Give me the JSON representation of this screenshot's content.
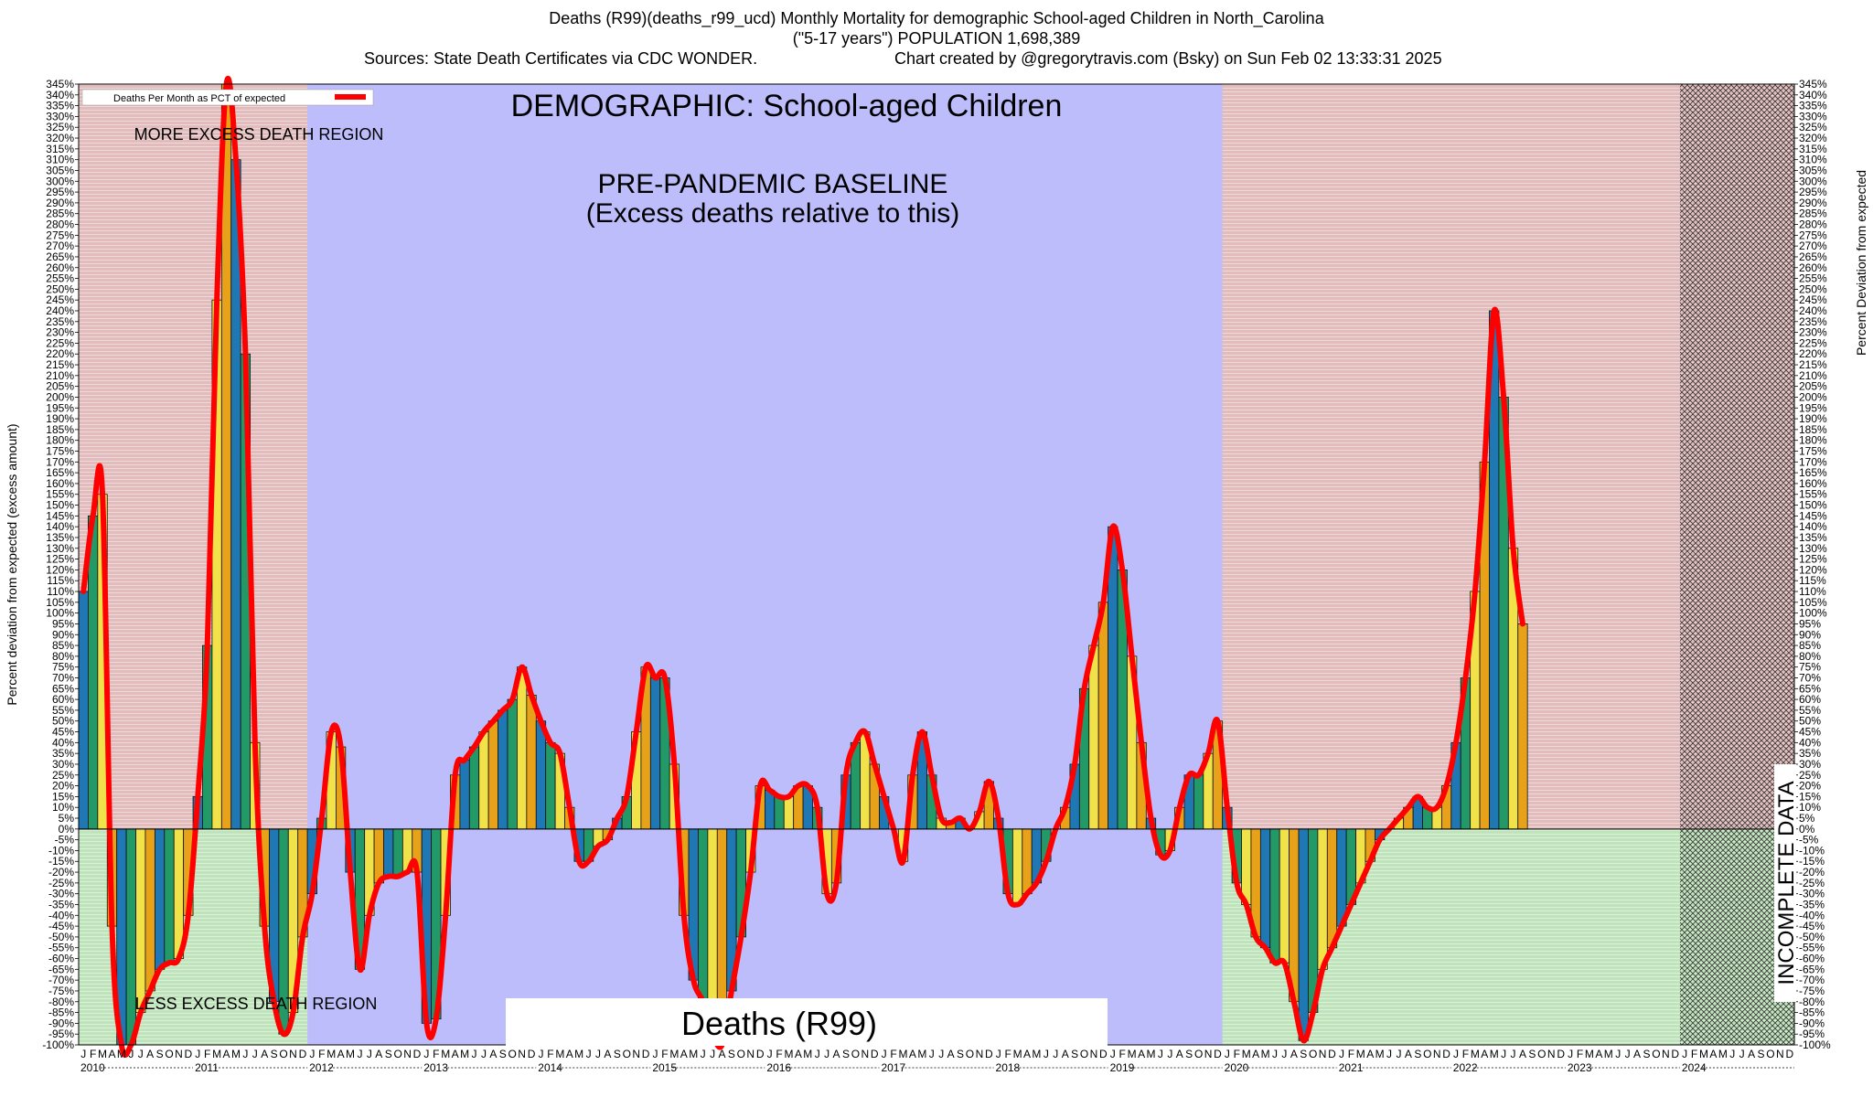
{
  "header": {
    "title": "Deaths (R99)(deaths_r99_ucd) Monthly Mortality for demographic School-aged Children in North_Carolina",
    "subtitle": "(\"5-17 years\") POPULATION 1,698,389",
    "sources": "Sources: State Death Certificates via CDC WONDER.",
    "credit": "Chart created by @gregorytravis.com (Bsky) on Sun Feb 02 13:33:31 2025"
  },
  "chart_data": {
    "type": "bar",
    "title": "DEMOGRAPHIC: School-aged Children",
    "ylabel_left": "Percent deviation from expected (excess amount)",
    "ylabel_right": "Percent Deviation from expected",
    "ylim": [
      -100,
      345
    ],
    "y_tick_step": 5,
    "y_tick_suffix": "%",
    "legend": {
      "label": "Deaths Per Month as PCT of expected",
      "position": "top-left",
      "color": "#ff0000"
    },
    "annotations": {
      "more_excess": "MORE EXCESS DEATH REGION",
      "less_excess": "LESS EXCESS DEATH REGION",
      "baseline_line1": "PRE-PANDEMIC BASELINE",
      "baseline_line2": "(Excess deaths relative to this)",
      "incomplete": "INCOMPLETE DATA",
      "cause_label": "Deaths (R99)"
    },
    "regions": {
      "baseline_start": "2012-01",
      "baseline_end": "2019-12",
      "incomplete_start": "2024-01"
    },
    "month_letters": [
      "J",
      "F",
      "M",
      "A",
      "M",
      "J",
      "J",
      "A",
      "S",
      "O",
      "N",
      "D"
    ],
    "years": [
      "2010",
      "2011",
      "2012",
      "2013",
      "2014",
      "2015",
      "2016",
      "2017",
      "2018",
      "2019",
      "2020",
      "2021",
      "2022",
      "2023",
      "2024"
    ],
    "bar_colors": [
      "#1f77b4",
      "#229966",
      "#f2e24a",
      "#e8a21a"
    ],
    "values": [
      110,
      145,
      155,
      -45,
      -100,
      -100,
      -85,
      -75,
      -65,
      -62,
      -60,
      -40,
      15,
      85,
      245,
      345,
      310,
      220,
      40,
      -45,
      -80,
      -95,
      -85,
      -50,
      -30,
      5,
      45,
      38,
      -20,
      -65,
      -40,
      -25,
      -22,
      -22,
      -20,
      -20,
      -90,
      -88,
      -40,
      25,
      32,
      38,
      45,
      50,
      55,
      60,
      75,
      62,
      50,
      40,
      35,
      10,
      -15,
      -15,
      -8,
      -5,
      5,
      15,
      45,
      75,
      70,
      70,
      30,
      -40,
      -70,
      -80,
      -95,
      -100,
      -75,
      -50,
      -20,
      20,
      18,
      15,
      15,
      20,
      20,
      10,
      -30,
      -25,
      25,
      40,
      45,
      30,
      15,
      0,
      -15,
      25,
      45,
      25,
      5,
      3,
      5,
      0,
      8,
      22,
      5,
      -30,
      -35,
      -30,
      -25,
      -15,
      0,
      10,
      30,
      65,
      85,
      105,
      140,
      120,
      80,
      40,
      5,
      -12,
      -10,
      10,
      25,
      25,
      35,
      50,
      10,
      -25,
      -35,
      -50,
      -55,
      -62,
      -62,
      -80,
      -98,
      -85,
      -65,
      -55,
      -45,
      -35,
      -25,
      -15,
      -5,
      0,
      5,
      10,
      15,
      10,
      10,
      20,
      40,
      70,
      110,
      170,
      240,
      200,
      130,
      95
    ]
  }
}
